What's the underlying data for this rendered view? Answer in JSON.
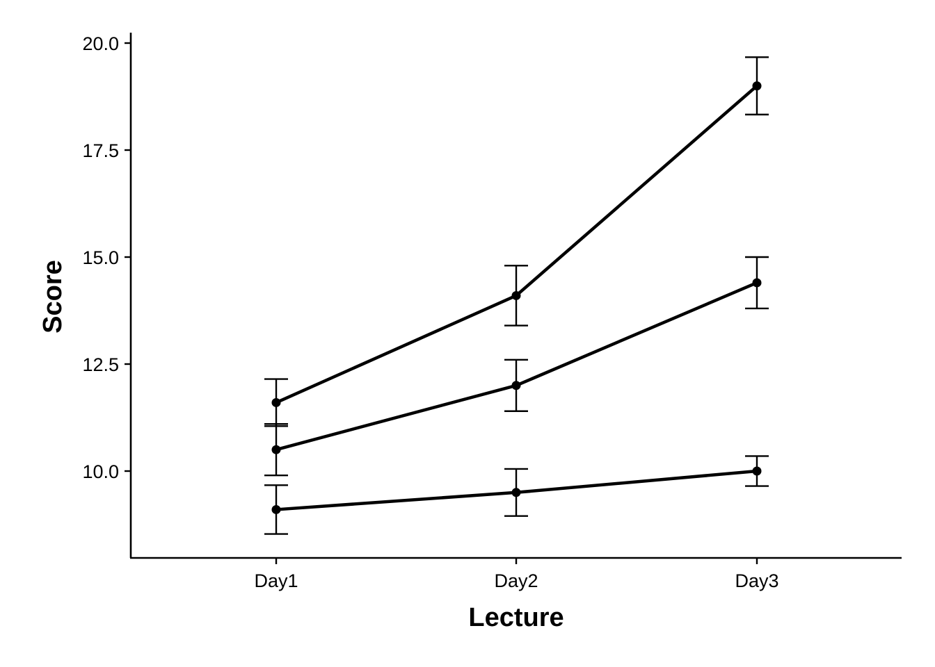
{
  "chart_data": {
    "type": "line",
    "xlabel": "Lecture",
    "ylabel": "Score",
    "categories": [
      "Day1",
      "Day2",
      "Day3"
    ],
    "ylim": [
      8.0,
      20.2
    ],
    "yticks": [
      10.0,
      12.5,
      15.0,
      17.5,
      20.0
    ],
    "ytick_labels": [
      "10.0",
      "12.5",
      "15.0",
      "17.5",
      "20.0"
    ],
    "grid": false,
    "legend": "none",
    "color": "#000000",
    "series": [
      {
        "values": [
          11.6,
          14.1,
          19.0
        ],
        "lower": [
          11.05,
          13.4,
          18.33
        ],
        "upper": [
          12.15,
          14.8,
          19.67
        ]
      },
      {
        "values": [
          10.5,
          12.0,
          14.4
        ],
        "lower": [
          9.9,
          11.4,
          13.8
        ],
        "upper": [
          11.1,
          12.6,
          15.0
        ]
      },
      {
        "values": [
          9.1,
          9.5,
          10.0
        ],
        "lower": [
          8.53,
          8.95,
          9.65
        ],
        "upper": [
          9.67,
          10.05,
          10.35
        ]
      }
    ]
  }
}
